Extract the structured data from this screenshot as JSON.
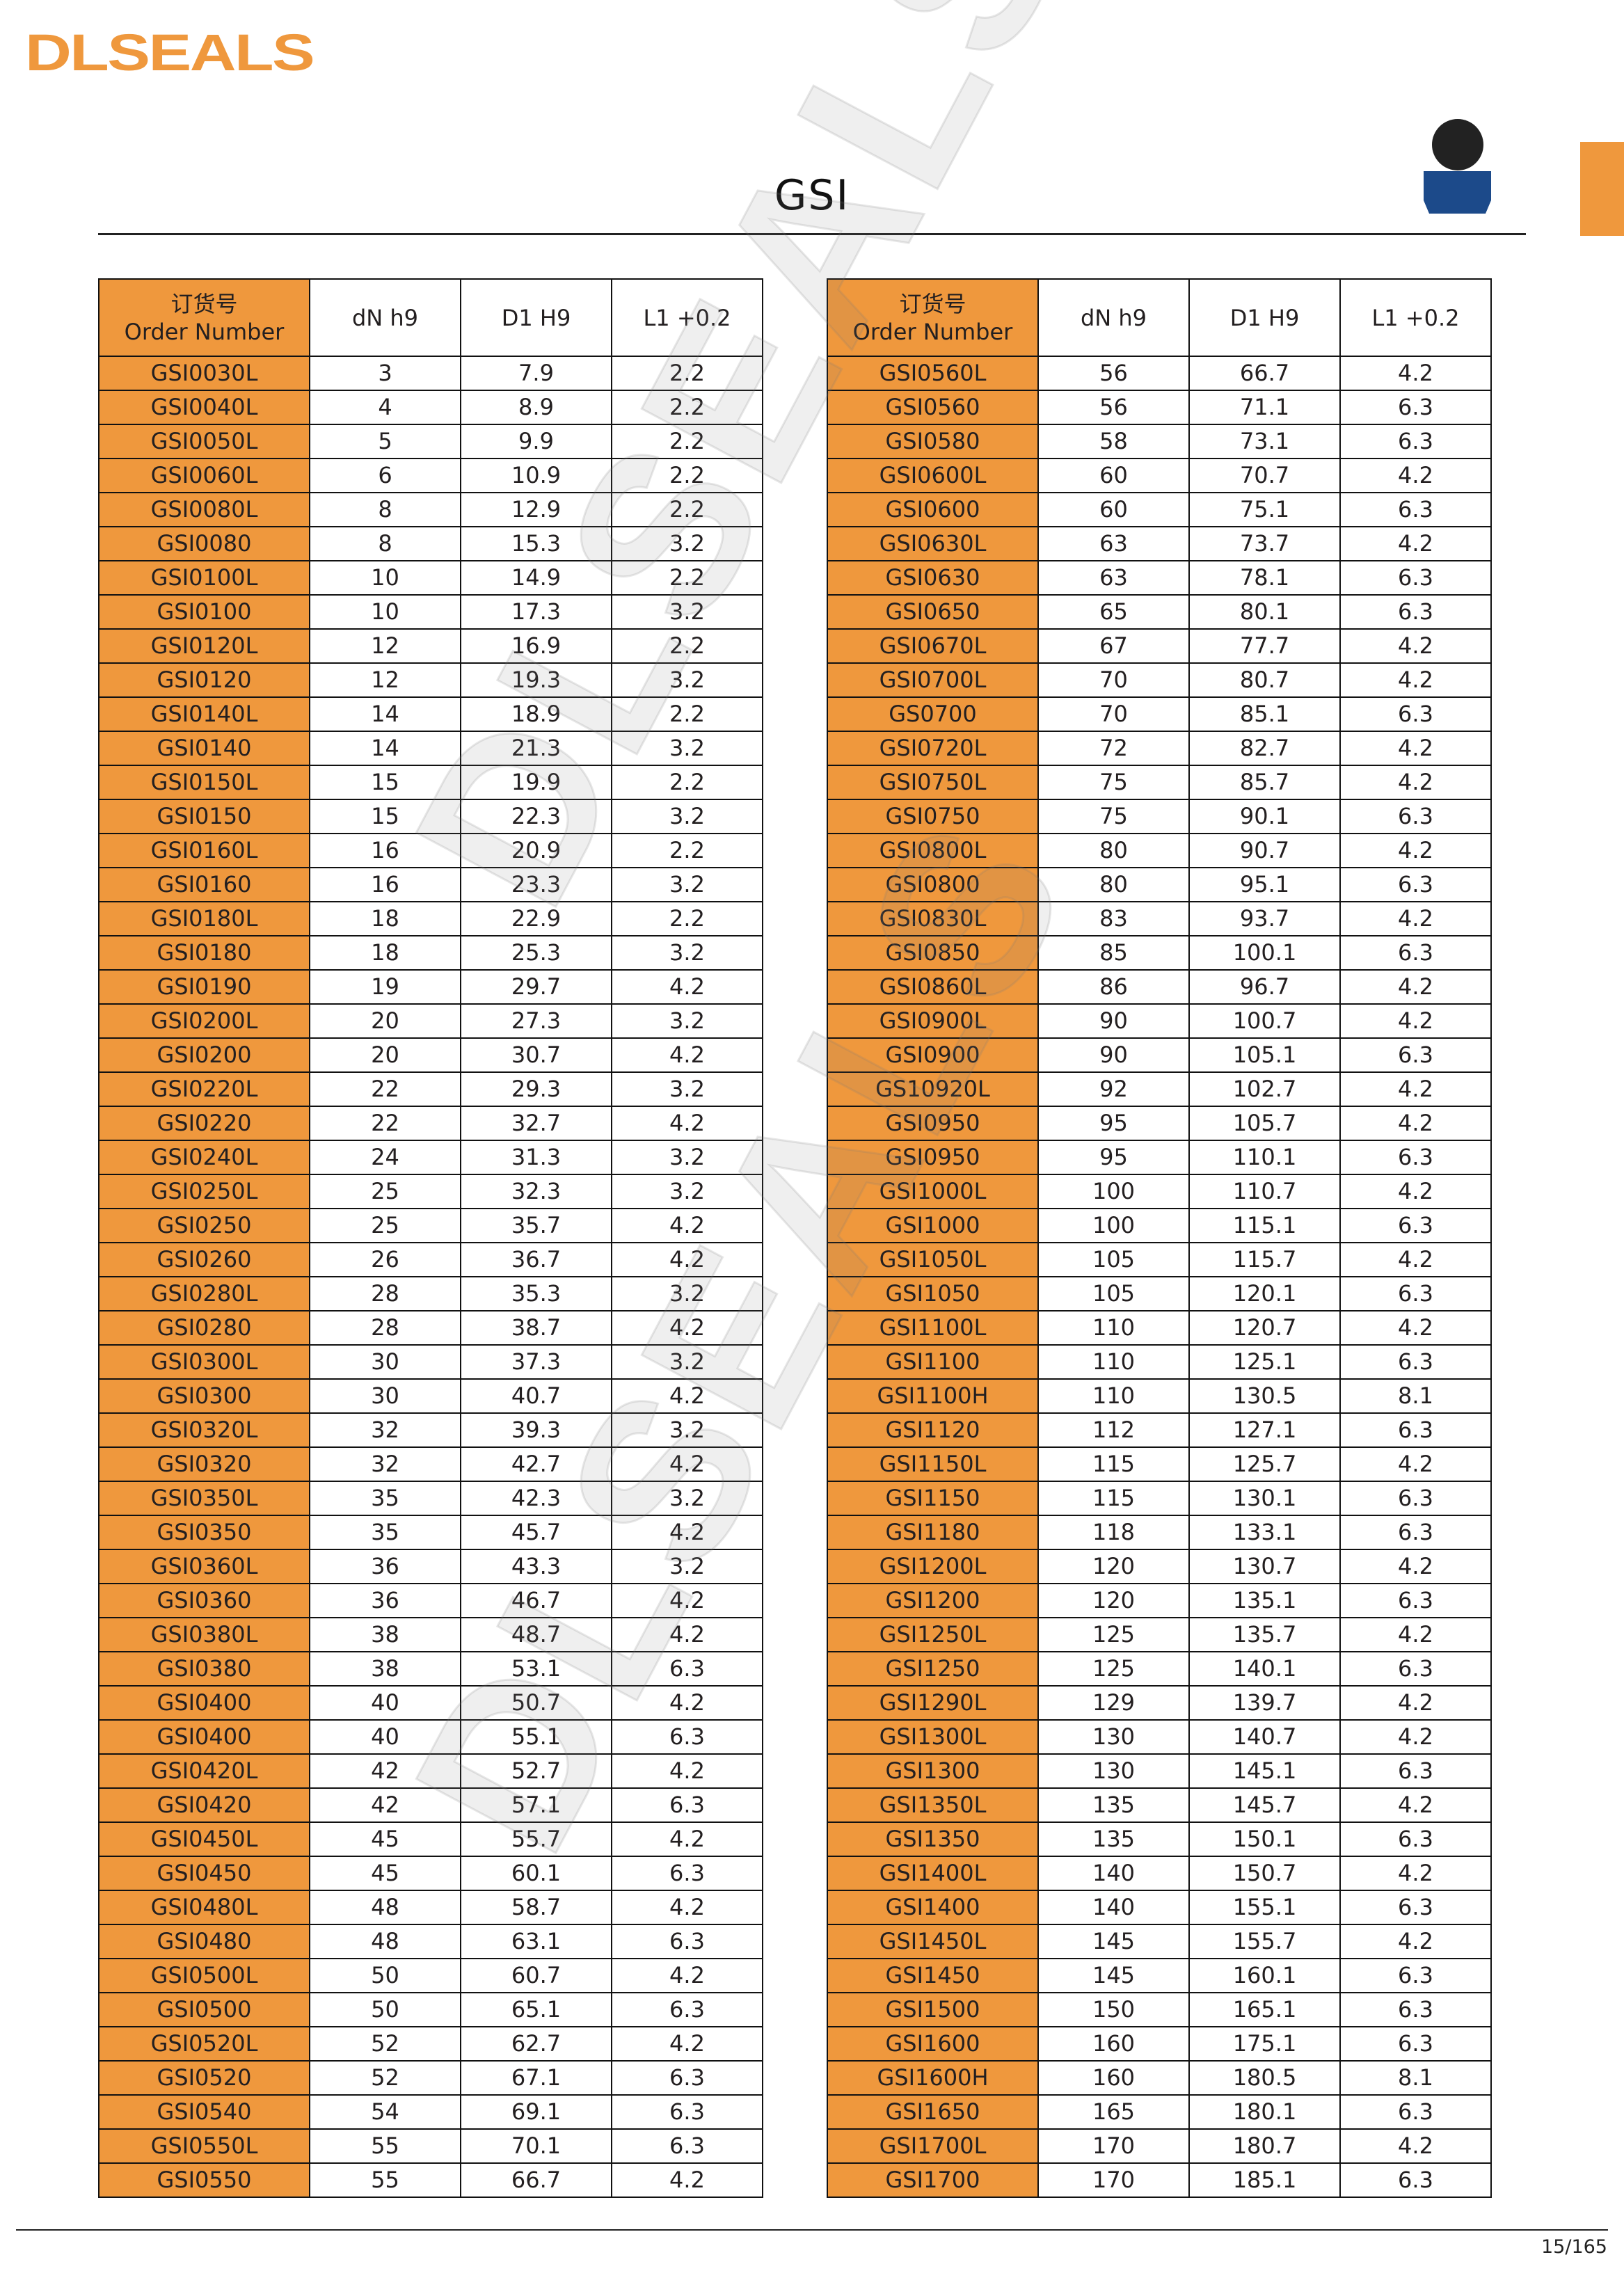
{
  "brand": {
    "logo_text": "DLSEALS",
    "accent_color": "#ef983d"
  },
  "page": {
    "title": "GSI",
    "page_number": "15/165"
  },
  "watermark_text": "DLSEALS",
  "icons": {
    "profile": "seal-profile-icon",
    "side_tab": "chapter-tab"
  },
  "columns": {
    "order_cn": "订货号",
    "order_en": "Order Number",
    "dn": "dN h9",
    "d1": "D1 H9",
    "l1": "L1 +0.2"
  },
  "tables": {
    "left": [
      [
        "GSI0030L",
        "3",
        "7.9",
        "2.2"
      ],
      [
        "GSI0040L",
        "4",
        "8.9",
        "2.2"
      ],
      [
        "GSI0050L",
        "5",
        "9.9",
        "2.2"
      ],
      [
        "GSI0060L",
        "6",
        "10.9",
        "2.2"
      ],
      [
        "GSI0080L",
        "8",
        "12.9",
        "2.2"
      ],
      [
        "GSI0080",
        "8",
        "15.3",
        "3.2"
      ],
      [
        "GSI0100L",
        "10",
        "14.9",
        "2.2"
      ],
      [
        "GSI0100",
        "10",
        "17.3",
        "3.2"
      ],
      [
        "GSI0120L",
        "12",
        "16.9",
        "2.2"
      ],
      [
        "GSI0120",
        "12",
        "19.3",
        "3.2"
      ],
      [
        "GSI0140L",
        "14",
        "18.9",
        "2.2"
      ],
      [
        "GSI0140",
        "14",
        "21.3",
        "3.2"
      ],
      [
        "GSI0150L",
        "15",
        "19.9",
        "2.2"
      ],
      [
        "GSI0150",
        "15",
        "22.3",
        "3.2"
      ],
      [
        "GSI0160L",
        "16",
        "20.9",
        "2.2"
      ],
      [
        "GSI0160",
        "16",
        "23.3",
        "3.2"
      ],
      [
        "GSI0180L",
        "18",
        "22.9",
        "2.2"
      ],
      [
        "GSI0180",
        "18",
        "25.3",
        "3.2"
      ],
      [
        "GSI0190",
        "19",
        "29.7",
        "4.2"
      ],
      [
        "GSI0200L",
        "20",
        "27.3",
        "3.2"
      ],
      [
        "GSI0200",
        "20",
        "30.7",
        "4.2"
      ],
      [
        "GSI0220L",
        "22",
        "29.3",
        "3.2"
      ],
      [
        "GSI0220",
        "22",
        "32.7",
        "4.2"
      ],
      [
        "GSI0240L",
        "24",
        "31.3",
        "3.2"
      ],
      [
        "GSI0250L",
        "25",
        "32.3",
        "3.2"
      ],
      [
        "GSI0250",
        "25",
        "35.7",
        "4.2"
      ],
      [
        "GSI0260",
        "26",
        "36.7",
        "4.2"
      ],
      [
        "GSI0280L",
        "28",
        "35.3",
        "3.2"
      ],
      [
        "GSI0280",
        "28",
        "38.7",
        "4.2"
      ],
      [
        "GSI0300L",
        "30",
        "37.3",
        "3.2"
      ],
      [
        "GSI0300",
        "30",
        "40.7",
        "4.2"
      ],
      [
        "GSI0320L",
        "32",
        "39.3",
        "3.2"
      ],
      [
        "GSI0320",
        "32",
        "42.7",
        "4.2"
      ],
      [
        "GSI0350L",
        "35",
        "42.3",
        "3.2"
      ],
      [
        "GSI0350",
        "35",
        "45.7",
        "4.2"
      ],
      [
        "GSI0360L",
        "36",
        "43.3",
        "3.2"
      ],
      [
        "GSI0360",
        "36",
        "46.7",
        "4.2"
      ],
      [
        "GSI0380L",
        "38",
        "48.7",
        "4.2"
      ],
      [
        "GSI0380",
        "38",
        "53.1",
        "6.3"
      ],
      [
        "GSI0400",
        "40",
        "50.7",
        "4.2"
      ],
      [
        "GSI0400",
        "40",
        "55.1",
        "6.3"
      ],
      [
        "GSI0420L",
        "42",
        "52.7",
        "4.2"
      ],
      [
        "GSI0420",
        "42",
        "57.1",
        "6.3"
      ],
      [
        "GSI0450L",
        "45",
        "55.7",
        "4.2"
      ],
      [
        "GSI0450",
        "45",
        "60.1",
        "6.3"
      ],
      [
        "GSI0480L",
        "48",
        "58.7",
        "4.2"
      ],
      [
        "GSI0480",
        "48",
        "63.1",
        "6.3"
      ],
      [
        "GSI0500L",
        "50",
        "60.7",
        "4.2"
      ],
      [
        "GSI0500",
        "50",
        "65.1",
        "6.3"
      ],
      [
        "GSI0520L",
        "52",
        "62.7",
        "4.2"
      ],
      [
        "GSI0520",
        "52",
        "67.1",
        "6.3"
      ],
      [
        "GSI0540",
        "54",
        "69.1",
        "6.3"
      ],
      [
        "GSI0550L",
        "55",
        "70.1",
        "6.3"
      ],
      [
        "GSI0550",
        "55",
        "66.7",
        "4.2"
      ]
    ],
    "right": [
      [
        "GSI0560L",
        "56",
        "66.7",
        "4.2"
      ],
      [
        "GSI0560",
        "56",
        "71.1",
        "6.3"
      ],
      [
        "GSI0580",
        "58",
        "73.1",
        "6.3"
      ],
      [
        "GSI0600L",
        "60",
        "70.7",
        "4.2"
      ],
      [
        "GSI0600",
        "60",
        "75.1",
        "6.3"
      ],
      [
        "GSI0630L",
        "63",
        "73.7",
        "4.2"
      ],
      [
        "GSI0630",
        "63",
        "78.1",
        "6.3"
      ],
      [
        "GSI0650",
        "65",
        "80.1",
        "6.3"
      ],
      [
        "GSI0670L",
        "67",
        "77.7",
        "4.2"
      ],
      [
        "GSI0700L",
        "70",
        "80.7",
        "4.2"
      ],
      [
        "GS0700",
        "70",
        "85.1",
        "6.3"
      ],
      [
        "GSI0720L",
        "72",
        "82.7",
        "4.2"
      ],
      [
        "GSI0750L",
        "75",
        "85.7",
        "4.2"
      ],
      [
        "GSI0750",
        "75",
        "90.1",
        "6.3"
      ],
      [
        "GSI0800L",
        "80",
        "90.7",
        "4.2"
      ],
      [
        "GSI0800",
        "80",
        "95.1",
        "6.3"
      ],
      [
        "GSI0830L",
        "83",
        "93.7",
        "4.2"
      ],
      [
        "GSI0850",
        "85",
        "100.1",
        "6.3"
      ],
      [
        "GSI0860L",
        "86",
        "96.7",
        "4.2"
      ],
      [
        "GSI0900L",
        "90",
        "100.7",
        "4.2"
      ],
      [
        "GSI0900",
        "90",
        "105.1",
        "6.3"
      ],
      [
        "GS10920L",
        "92",
        "102.7",
        "4.2"
      ],
      [
        "GSI0950",
        "95",
        "105.7",
        "4.2"
      ],
      [
        "GSI0950",
        "95",
        "110.1",
        "6.3"
      ],
      [
        "GSI1000L",
        "100",
        "110.7",
        "4.2"
      ],
      [
        "GSI1000",
        "100",
        "115.1",
        "6.3"
      ],
      [
        "GSI1050L",
        "105",
        "115.7",
        "4.2"
      ],
      [
        "GSI1050",
        "105",
        "120.1",
        "6.3"
      ],
      [
        "GSI1100L",
        "110",
        "120.7",
        "4.2"
      ],
      [
        "GSI1100",
        "110",
        "125.1",
        "6.3"
      ],
      [
        "GSI1100H",
        "110",
        "130.5",
        "8.1"
      ],
      [
        "GSI1120",
        "112",
        "127.1",
        "6.3"
      ],
      [
        "GSI1150L",
        "115",
        "125.7",
        "4.2"
      ],
      [
        "GSI1150",
        "115",
        "130.1",
        "6.3"
      ],
      [
        "GSI1180",
        "118",
        "133.1",
        "6.3"
      ],
      [
        "GSI1200L",
        "120",
        "130.7",
        "4.2"
      ],
      [
        "GSI1200",
        "120",
        "135.1",
        "6.3"
      ],
      [
        "GSI1250L",
        "125",
        "135.7",
        "4.2"
      ],
      [
        "GSI1250",
        "125",
        "140.1",
        "6.3"
      ],
      [
        "GSI1290L",
        "129",
        "139.7",
        "4.2"
      ],
      [
        "GSI1300L",
        "130",
        "140.7",
        "4.2"
      ],
      [
        "GSI1300",
        "130",
        "145.1",
        "6.3"
      ],
      [
        "GSI1350L",
        "135",
        "145.7",
        "4.2"
      ],
      [
        "GSI1350",
        "135",
        "150.1",
        "6.3"
      ],
      [
        "GSI1400L",
        "140",
        "150.7",
        "4.2"
      ],
      [
        "GSI1400",
        "140",
        "155.1",
        "6.3"
      ],
      [
        "GSI1450L",
        "145",
        "155.7",
        "4.2"
      ],
      [
        "GSI1450",
        "145",
        "160.1",
        "6.3"
      ],
      [
        "GSI1500",
        "150",
        "165.1",
        "6.3"
      ],
      [
        "GSI1600",
        "160",
        "175.1",
        "6.3"
      ],
      [
        "GSI1600H",
        "160",
        "180.5",
        "8.1"
      ],
      [
        "GSI1650",
        "165",
        "180.1",
        "6.3"
      ],
      [
        "GSI1700L",
        "170",
        "180.7",
        "4.2"
      ],
      [
        "GSI1700",
        "170",
        "185.1",
        "6.3"
      ]
    ]
  }
}
